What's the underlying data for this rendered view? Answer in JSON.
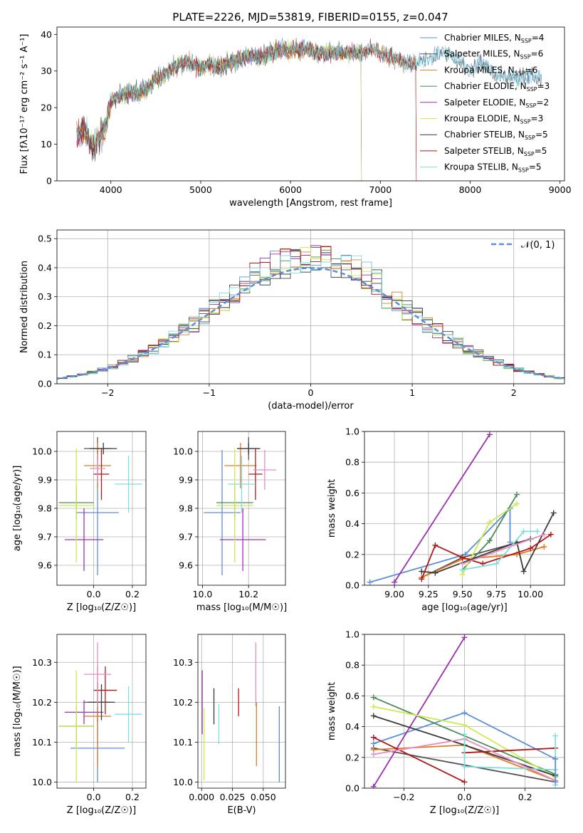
{
  "figure_title": "PLATE=2226, MJD=53819, FIBERID=0155, z=0.047",
  "colors": {
    "Chabrier MILES": "#5b8fd6",
    "Salpeter MILES": "#555555",
    "Kroupa MILES": "#e07b20",
    "Chabrier ELODIE": "#4a8a55",
    "Salpeter ELODIE": "#9a30b0",
    "Kroupa ELODIE": "#ccea50",
    "Chabrier STELIB": "#3a3a3a",
    "Salpeter STELIB": "#b01818",
    "Kroupa STELIB": "#7fdde0",
    "extra_pink": "#ea8ac0",
    "normal_curve": "#5b8fd6"
  },
  "chart_data": [
    {
      "id": "spectrum",
      "type": "line",
      "title": "PLATE=2226, MJD=53819, FIBERID=0155, z=0.047",
      "xlabel": "wavelength [Angstrom, rest frame]",
      "ylabel": "Flux [f$_\\lambda$10$^{-17}$ erg cm$^{-2}$ s$^{-1}$ A$^{-1}$]",
      "ylabel_display": "Flux [fλ10⁻¹⁷ erg cm⁻² s⁻¹ A⁻¹]",
      "xlim": [
        3400,
        9050
      ],
      "ylim": [
        0,
        42
      ],
      "xticks": [
        4000,
        5000,
        6000,
        7000,
        8000,
        9000
      ],
      "yticks": [
        0,
        10,
        20,
        30,
        40
      ],
      "grid": false,
      "legend_position": "right",
      "continuum": [
        [
          3620,
          12
        ],
        [
          3700,
          14
        ],
        [
          3800,
          9
        ],
        [
          3880,
          12
        ],
        [
          3950,
          15
        ],
        [
          4000,
          22
        ],
        [
          4100,
          23
        ],
        [
          4200,
          24
        ],
        [
          4300,
          24
        ],
        [
          4400,
          25
        ],
        [
          4500,
          28
        ],
        [
          4600,
          29
        ],
        [
          4700,
          31
        ],
        [
          4800,
          32
        ],
        [
          4900,
          32
        ],
        [
          5000,
          31
        ],
        [
          5100,
          32
        ],
        [
          5200,
          31
        ],
        [
          5300,
          32
        ],
        [
          5400,
          33
        ],
        [
          5500,
          34
        ],
        [
          5600,
          34
        ],
        [
          5700,
          34
        ],
        [
          5800,
          35
        ],
        [
          5900,
          36
        ],
        [
          6000,
          36
        ],
        [
          6100,
          36
        ],
        [
          6200,
          36
        ],
        [
          6300,
          35
        ],
        [
          6400,
          35
        ],
        [
          6500,
          35
        ],
        [
          6600,
          35
        ],
        [
          6700,
          35
        ],
        [
          6800,
          35
        ],
        [
          6900,
          36
        ],
        [
          7000,
          35
        ],
        [
          7100,
          34
        ],
        [
          7200,
          33
        ],
        [
          7300,
          32
        ],
        [
          7400,
          32
        ],
        [
          7500,
          33
        ],
        [
          7600,
          34
        ],
        [
          7700,
          35
        ],
        [
          7800,
          34
        ],
        [
          7900,
          32
        ],
        [
          8000,
          30
        ],
        [
          8100,
          32
        ],
        [
          8200,
          31
        ],
        [
          8300,
          29
        ],
        [
          8400,
          28
        ],
        [
          8500,
          28
        ],
        [
          8600,
          29
        ],
        [
          8700,
          28
        ],
        [
          8800,
          29
        ]
      ],
      "series": [
        {
          "name": "Chabrier MILES, N$_{SSP}$=4",
          "legend": "Chabrier MILES, N",
          "sub": "SSP",
          "suffix": "=4",
          "end": 8800
        },
        {
          "name": "Salpeter MILES, N$_{SSP}$=6",
          "legend": "Salpeter MILES, N",
          "sub": "SSP",
          "suffix": "=6",
          "end": 7400
        },
        {
          "name": "Kroupa MILES, N$_{SSP}$=6",
          "legend": "Kroupa MILES, N",
          "sub": "SSP",
          "suffix": "=6",
          "end": 7400
        },
        {
          "name": "Chabrier ELODIE, N$_{SSP}$=3",
          "legend": "Chabrier ELODIE, N",
          "sub": "SSP",
          "suffix": "=3",
          "end": 6790
        },
        {
          "name": "Salpeter ELODIE, N$_{SSP}$=2",
          "legend": "Salpeter ELODIE, N",
          "sub": "SSP",
          "suffix": "=2",
          "end": 6790
        },
        {
          "name": "Kroupa ELODIE, N$_{SSP}$=3",
          "legend": "Kroupa ELODIE, N",
          "sub": "SSP",
          "suffix": "=3",
          "end": 6790
        },
        {
          "name": "Chabrier STELIB, N$_{SSP}$=5",
          "legend": "Chabrier STELIB, N",
          "sub": "SSP",
          "suffix": "=5",
          "end": 8800
        },
        {
          "name": "Salpeter STELIB, N$_{SSP}$=5",
          "legend": "Salpeter STELIB, N",
          "sub": "SSP",
          "suffix": "=5",
          "end": 7400
        },
        {
          "name": "Kroupa STELIB, N$_{SSP}$=5",
          "legend": "Kroupa STELIB, N",
          "sub": "SSP",
          "suffix": "=5",
          "end": 8800
        }
      ]
    },
    {
      "id": "residuals",
      "type": "histogram",
      "xlabel": "(data-model)/error",
      "ylabel": "Normed distribution",
      "xlim": [
        -2.5,
        2.5
      ],
      "ylim": [
        0,
        0.53
      ],
      "xticks": [
        -2,
        -1,
        0,
        1,
        2
      ],
      "yticks": [
        0.0,
        0.1,
        0.2,
        0.3,
        0.4,
        0.5
      ],
      "grid": true,
      "bin_width": 0.1,
      "legend_position": "top-right",
      "legend_label": "$\\mathcal{N}(0,1)$",
      "legend_display": "𝒩(0, 1)"
    },
    {
      "id": "age_vs_Z",
      "type": "errorbar",
      "xlabel": "Z [log$_{10}$($Z/Z_\\odot$)]",
      "xlabel_display": "Z [log₁₀(Z/Z☉)]",
      "ylabel": "age  [log$_{10}$($age/yr$)]",
      "ylabel_display": "age  [log₁₀(age/yr)]",
      "xlim": [
        -0.19,
        0.27
      ],
      "ylim": [
        9.53,
        10.07
      ],
      "xticks": [
        0.0,
        0.2
      ],
      "yticks": [
        9.6,
        9.7,
        9.8,
        9.9,
        10.0
      ],
      "grid": true,
      "points": [
        {
          "model": "Chabrier MILES",
          "x": 0.02,
          "xerr": 0.11,
          "y": 9.785,
          "yerr": 0.22
        },
        {
          "model": "Salpeter MILES",
          "x": 0.02,
          "xerr": 0.07,
          "y": 10.01,
          "yerr": 0.04
        },
        {
          "model": "Kroupa MILES",
          "x": 0.02,
          "xerr": 0.07,
          "y": 9.95,
          "yerr": 0.08
        },
        {
          "model": "Chabrier ELODIE",
          "x": -0.09,
          "xerr": 0.09,
          "y": 9.82,
          "yerr": 0.06
        },
        {
          "model": "Salpeter ELODIE",
          "x": -0.05,
          "xerr": 0.1,
          "y": 9.69,
          "yerr": 0.11
        },
        {
          "model": "Kroupa ELODIE",
          "x": -0.09,
          "xerr": 0.09,
          "y": 9.81,
          "yerr": 0.2
        },
        {
          "model": "Chabrier STELIB",
          "x": 0.05,
          "xerr": 0.07,
          "y": 10.01,
          "yerr": 0.02
        },
        {
          "model": "Salpeter STELIB",
          "x": 0.04,
          "xerr": 0.04,
          "y": 9.92,
          "yerr": 0.09
        },
        {
          "model": "Kroupa STELIB",
          "x": 0.18,
          "xerr": 0.07,
          "y": 9.885,
          "yerr": 0.1
        },
        {
          "model": "extra_pink",
          "x": 0.02,
          "xerr": 0.04,
          "y": 9.94,
          "yerr": 0.05
        }
      ]
    },
    {
      "id": "age_vs_mass",
      "type": "errorbar",
      "xlabel": "mass [log$_{10}$($M/M_\\odot$)]",
      "xlabel_display": "mass [log₁₀(M/M☉)]",
      "xlim": [
        9.98,
        10.36
      ],
      "ylim": [
        9.53,
        10.07
      ],
      "xticks": [
        10.0,
        10.2
      ],
      "yticks": [
        9.6,
        9.7,
        9.8,
        9.9,
        10.0
      ],
      "grid": true,
      "points": [
        {
          "model": "Chabrier MILES",
          "x": 10.085,
          "xerr": 0.08,
          "y": 9.785,
          "yerr": 0.22
        },
        {
          "model": "Salpeter MILES",
          "x": 10.2,
          "xerr": 0.05,
          "y": 10.01,
          "yerr": 0.04
        },
        {
          "model": "Kroupa MILES",
          "x": 10.165,
          "xerr": 0.07,
          "y": 9.95,
          "yerr": 0.08
        },
        {
          "model": "Chabrier ELODIE",
          "x": 10.14,
          "xerr": 0.08,
          "y": 9.82,
          "yerr": 0.06
        },
        {
          "model": "Salpeter ELODIE",
          "x": 10.175,
          "xerr": 0.1,
          "y": 9.69,
          "yerr": 0.11
        },
        {
          "model": "Kroupa ELODIE",
          "x": 10.14,
          "xerr": 0.08,
          "y": 9.81,
          "yerr": 0.2
        },
        {
          "model": "Chabrier STELIB",
          "x": 10.2,
          "xerr": 0.05,
          "y": 10.01,
          "yerr": 0.02
        },
        {
          "model": "Salpeter STELIB",
          "x": 10.23,
          "xerr": 0.03,
          "y": 9.92,
          "yerr": 0.09
        },
        {
          "model": "Kroupa STELIB",
          "x": 10.17,
          "xerr": 0.06,
          "y": 9.885,
          "yerr": 0.1
        },
        {
          "model": "extra_pink",
          "x": 10.27,
          "xerr": 0.05,
          "y": 9.935,
          "yerr": 0.07
        }
      ]
    },
    {
      "id": "weight_vs_age",
      "type": "line",
      "xlabel": "age  [log$_{10}$($age/yr$)]",
      "xlabel_display": "age  [log₁₀(age/yr)]",
      "ylabel": "mass weight",
      "xlim": [
        8.78,
        10.25
      ],
      "ylim": [
        0,
        1.0
      ],
      "xticks": [
        9.0,
        9.25,
        9.5,
        9.75,
        10.0
      ],
      "yticks": [
        0.0,
        0.2,
        0.4,
        0.6,
        0.8,
        1.0
      ],
      "grid": true,
      "series": [
        {
          "model": "Chabrier MILES",
          "x": [
            8.82,
            9.52,
            9.85,
            9.85
          ],
          "y": [
            0.02,
            0.2,
            0.5,
            0.28
          ]
        },
        {
          "model": "Salpeter MILES",
          "x": [
            9.2,
            9.5,
            10.0
          ],
          "y": [
            0.05,
            0.18,
            0.3
          ]
        },
        {
          "model": "Kroupa MILES",
          "x": [
            9.2,
            9.5,
            9.9,
            10.1
          ],
          "y": [
            0.05,
            0.17,
            0.2,
            0.25
          ]
        },
        {
          "model": "Chabrier ELODIE",
          "x": [
            9.5,
            9.7,
            9.9
          ],
          "y": [
            0.1,
            0.29,
            0.59
          ]
        },
        {
          "model": "Salpeter ELODIE",
          "x": [
            9.0,
            9.7
          ],
          "y": [
            0.02,
            0.98
          ]
        },
        {
          "model": "Kroupa ELODIE",
          "x": [
            9.5,
            9.7,
            9.9
          ],
          "y": [
            0.07,
            0.41,
            0.53
          ]
        },
        {
          "model": "Chabrier STELIB",
          "x": [
            9.2,
            9.3,
            9.9,
            9.95,
            10.17
          ],
          "y": [
            0.09,
            0.08,
            0.28,
            0.09,
            0.47
          ]
        },
        {
          "model": "Salpeter STELIB",
          "x": [
            9.2,
            9.3,
            9.5,
            9.65,
            10.0,
            10.15
          ],
          "y": [
            0.04,
            0.26,
            0.18,
            0.14,
            0.24,
            0.33
          ]
        },
        {
          "model": "Kroupa STELIB",
          "x": [
            9.5,
            9.75,
            9.95,
            10.05
          ],
          "y": [
            0.1,
            0.14,
            0.35,
            0.35
          ]
        },
        {
          "model": "extra_pink",
          "x": [
            9.5,
            10.1
          ],
          "y": [
            0.14,
            0.33
          ]
        }
      ]
    },
    {
      "id": "mass_vs_Z",
      "type": "errorbar",
      "xlabel": "Z [log$_{10}$($Z/Z_\\odot$)]",
      "xlabel_display": "Z [log₁₀(Z/Z☉)]",
      "ylabel": "mass [log$_{10}$($M/M_\\odot$)]",
      "ylabel_display": "mass [log₁₀(M/M☉)]",
      "xlim": [
        -0.19,
        0.27
      ],
      "ylim": [
        9.985,
        10.37
      ],
      "xticks": [
        0.0,
        0.2
      ],
      "yticks": [
        10.0,
        10.1,
        10.2,
        10.3
      ],
      "grid": true,
      "points": [
        {
          "model": "Chabrier MILES",
          "x": 0.02,
          "xerr": 0.14,
          "y": 10.085,
          "yerr": 0.085
        },
        {
          "model": "Salpeter MILES",
          "x": 0.02,
          "xerr": 0.07,
          "y": 10.2,
          "yerr": 0.05
        },
        {
          "model": "Kroupa MILES",
          "x": 0.02,
          "xerr": 0.07,
          "y": 10.165,
          "yerr": 0.125
        },
        {
          "model": "Chabrier ELODIE",
          "x": -0.09,
          "xerr": 0.09,
          "y": 10.14,
          "yerr": 0.05
        },
        {
          "model": "Salpeter ELODIE",
          "x": -0.05,
          "xerr": 0.1,
          "y": 10.175,
          "yerr": 0.03
        },
        {
          "model": "Kroupa ELODIE",
          "x": -0.09,
          "xerr": 0.09,
          "y": 10.14,
          "yerr": 0.14
        },
        {
          "model": "Chabrier STELIB",
          "x": 0.04,
          "xerr": 0.07,
          "y": 10.2,
          "yerr": 0.045
        },
        {
          "model": "Salpeter STELIB",
          "x": 0.06,
          "xerr": 0.06,
          "y": 10.23,
          "yerr": 0.06
        },
        {
          "model": "Kroupa STELIB",
          "x": 0.18,
          "xerr": 0.07,
          "y": 10.17,
          "yerr": 0.07
        },
        {
          "model": "extra_pink",
          "x": 0.02,
          "xerr": 0.07,
          "y": 10.27,
          "yerr": 0.08
        }
      ]
    },
    {
      "id": "mass_vs_EBV",
      "type": "errorbar",
      "xlabel": "E(B-V)",
      "xlim": [
        -0.003,
        0.068
      ],
      "ylim": [
        9.985,
        10.37
      ],
      "xticks": [
        0.0,
        0.025,
        0.05
      ],
      "xtick_labels": [
        "0.000",
        "0.025",
        "0.050"
      ],
      "yticks": [
        10.0,
        10.1,
        10.2,
        10.3
      ],
      "grid": true,
      "points": [
        {
          "model": "Salpeter ELODIE",
          "x": 0.0005,
          "y": 10.2,
          "yerr": 0.08
        },
        {
          "model": "Kroupa ELODIE",
          "x": 0.002,
          "y": 10.095,
          "yerr": 0.09
        },
        {
          "model": "Chabrier STELIB",
          "x": 0.01,
          "y": 10.19,
          "yerr": 0.045
        },
        {
          "model": "Kroupa STELIB",
          "x": 0.014,
          "y": 10.145,
          "yerr": 0.05
        },
        {
          "model": "Salpeter STELIB",
          "x": 0.03,
          "y": 10.2,
          "yerr": 0.035
        },
        {
          "model": "extra_pink",
          "x": 0.044,
          "y": 10.27,
          "yerr": 0.08
        },
        {
          "model": "Kroupa MILES",
          "x": 0.0445,
          "y": 10.12,
          "yerr": 0.08
        },
        {
          "model": "Chabrier MILES",
          "x": 0.063,
          "y": 10.095,
          "yerr": 0.095
        }
      ]
    },
    {
      "id": "weight_vs_Z",
      "type": "line",
      "xlabel": "Z [log$_{10}$($Z/Z_\\odot$)]",
      "xlabel_display": "Z [log₁₀(Z/Z☉)]",
      "ylabel": "mass weight",
      "xlim": [
        -0.33,
        0.33
      ],
      "ylim": [
        0,
        1.0
      ],
      "xticks": [
        -0.2,
        0.0,
        0.2
      ],
      "yticks": [
        0.0,
        0.2,
        0.4,
        0.6,
        0.8,
        1.0
      ],
      "grid": true,
      "series": [
        {
          "model": "Chabrier MILES",
          "x": [
            -0.3,
            0.0,
            0.3
          ],
          "y": [
            0.29,
            0.49,
            0.19
          ]
        },
        {
          "model": "Salpeter MILES",
          "x": [
            -0.3,
            0.3
          ],
          "y": [
            0.26,
            0.04
          ]
        },
        {
          "model": "Kroupa MILES",
          "x": [
            -0.3,
            0.0,
            0.3
          ],
          "y": [
            0.25,
            0.28,
            0.05
          ]
        },
        {
          "model": "Chabrier ELODIE",
          "x": [
            -0.3,
            0.3
          ],
          "y": [
            0.59,
            0.09
          ]
        },
        {
          "model": "Salpeter ELODIE",
          "x": [
            -0.3,
            0.0
          ],
          "y": [
            0.01,
            0.98
          ]
        },
        {
          "model": "Kroupa ELODIE",
          "x": [
            -0.3,
            0.0,
            0.3
          ],
          "y": [
            0.53,
            0.41,
            0.07
          ]
        },
        {
          "model": "Chabrier STELIB",
          "x": [
            -0.3,
            0.0,
            0.3
          ],
          "y": [
            0.47,
            0.28,
            0.08
          ]
        },
        {
          "model": "Salpeter STELIB",
          "x": [
            -0.3,
            0.0
          ],
          "y": [
            0.33,
            0.04
          ]
        },
        {
          "model": "Salpeter STELIB",
          "x": [
            0.0,
            0.3
          ],
          "y": [
            0.23,
            0.26
          ]
        },
        {
          "model": "Kroupa STELIB",
          "x": [
            0.0,
            0.3
          ],
          "y": [
            0.14,
            0.12
          ]
        },
        {
          "model": "extra_pink",
          "x": [
            -0.3,
            0.0,
            0.3
          ],
          "y": [
            0.22,
            0.32,
            0.05
          ]
        }
      ],
      "vertical_spreads": [
        {
          "model": "Kroupa STELIB",
          "x": 0.0,
          "y": [
            0.14,
            0.35
          ]
        },
        {
          "model": "Kroupa STELIB",
          "x": 0.3,
          "y": [
            0.02,
            0.34
          ]
        },
        {
          "model": "Chabrier MILES",
          "x": 0.3,
          "y": [
            0.04,
            0.19
          ]
        }
      ]
    }
  ]
}
